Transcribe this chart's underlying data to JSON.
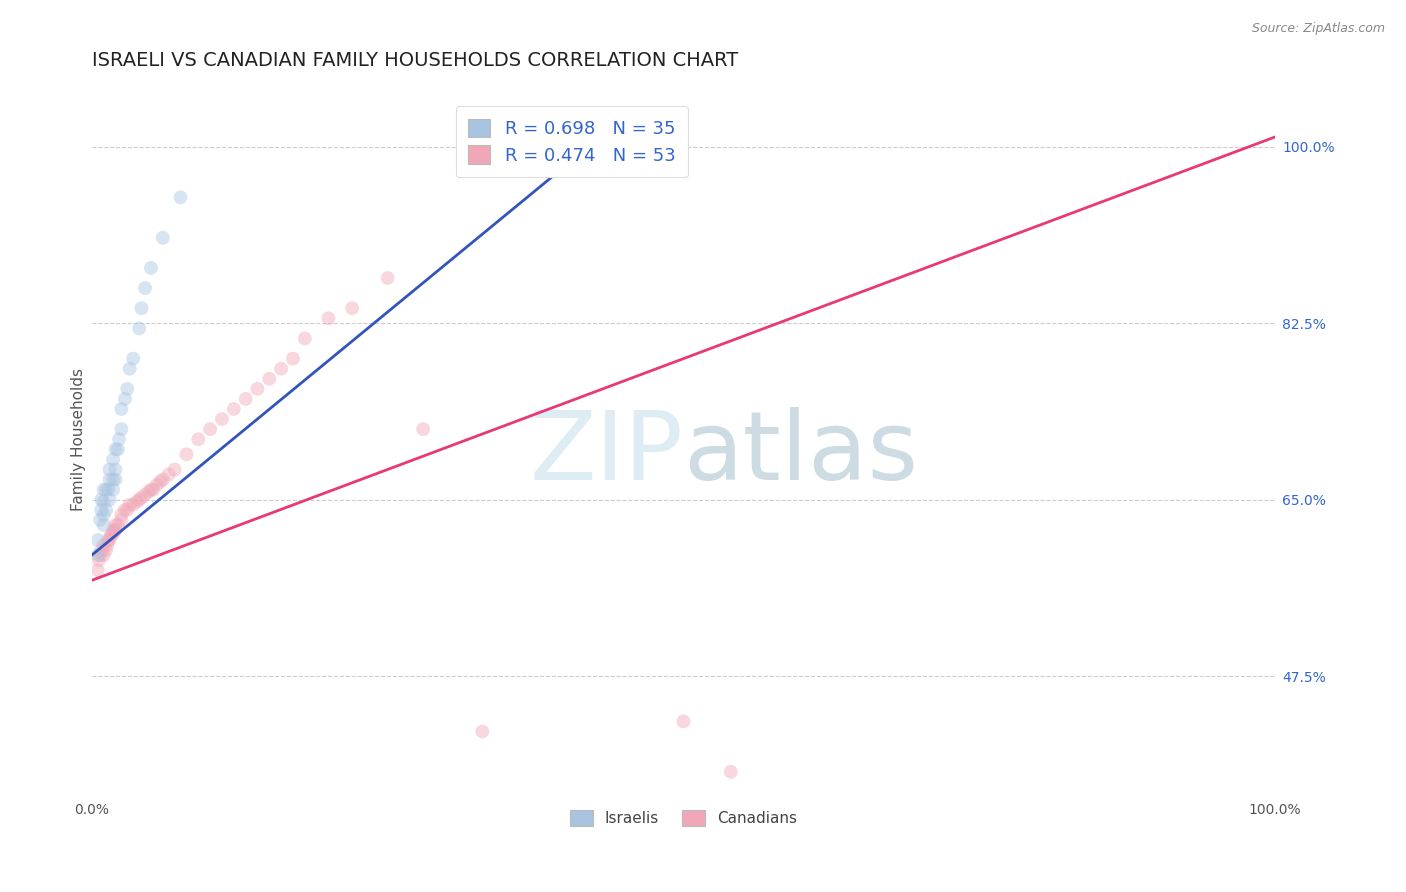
{
  "title": "ISRAELI VS CANADIAN FAMILY HOUSEHOLDS CORRELATION CHART",
  "source": "Source: ZipAtlas.com",
  "ylabel": "Family Households",
  "ytick_labels": [
    "47.5%",
    "65.0%",
    "82.5%",
    "100.0%"
  ],
  "ytick_values": [
    0.475,
    0.65,
    0.825,
    1.0
  ],
  "xlim": [
    0.0,
    1.0
  ],
  "ylim": [
    0.36,
    1.06
  ],
  "legend_blue": "R = 0.698   N = 35",
  "legend_pink": "R = 0.474   N = 53",
  "blue_color": "#a8c4e0",
  "pink_color": "#f0a8b8",
  "blue_line_color": "#3355bb",
  "pink_line_color": "#e83878",
  "israelis_x": [
    0.005,
    0.005,
    0.007,
    0.008,
    0.008,
    0.01,
    0.01,
    0.01,
    0.01,
    0.012,
    0.012,
    0.014,
    0.015,
    0.015,
    0.015,
    0.018,
    0.018,
    0.018,
    0.02,
    0.02,
    0.02,
    0.022,
    0.023,
    0.025,
    0.025,
    0.028,
    0.03,
    0.032,
    0.035,
    0.04,
    0.042,
    0.045,
    0.05,
    0.06,
    0.075
  ],
  "israelis_y": [
    0.595,
    0.61,
    0.63,
    0.64,
    0.65,
    0.625,
    0.635,
    0.648,
    0.66,
    0.64,
    0.66,
    0.66,
    0.65,
    0.67,
    0.68,
    0.66,
    0.67,
    0.69,
    0.67,
    0.68,
    0.7,
    0.7,
    0.71,
    0.72,
    0.74,
    0.75,
    0.76,
    0.78,
    0.79,
    0.82,
    0.84,
    0.86,
    0.88,
    0.91,
    0.95
  ],
  "canadians_x": [
    0.005,
    0.006,
    0.007,
    0.008,
    0.01,
    0.01,
    0.012,
    0.013,
    0.014,
    0.015,
    0.016,
    0.017,
    0.018,
    0.019,
    0.02,
    0.02,
    0.022,
    0.025,
    0.025,
    0.028,
    0.03,
    0.032,
    0.035,
    0.038,
    0.04,
    0.042,
    0.045,
    0.048,
    0.05,
    0.052,
    0.055,
    0.058,
    0.06,
    0.065,
    0.07,
    0.08,
    0.09,
    0.1,
    0.11,
    0.12,
    0.13,
    0.14,
    0.15,
    0.16,
    0.17,
    0.18,
    0.2,
    0.22,
    0.25,
    0.28,
    0.33,
    0.5,
    0.54
  ],
  "canadians_y": [
    0.58,
    0.59,
    0.595,
    0.6,
    0.595,
    0.605,
    0.6,
    0.605,
    0.61,
    0.61,
    0.615,
    0.615,
    0.62,
    0.618,
    0.62,
    0.625,
    0.625,
    0.63,
    0.635,
    0.64,
    0.64,
    0.645,
    0.645,
    0.648,
    0.65,
    0.652,
    0.655,
    0.658,
    0.66,
    0.66,
    0.665,
    0.668,
    0.67,
    0.675,
    0.68,
    0.695,
    0.71,
    0.72,
    0.73,
    0.74,
    0.75,
    0.76,
    0.77,
    0.78,
    0.79,
    0.81,
    0.83,
    0.84,
    0.87,
    0.72,
    0.42,
    0.43,
    0.38
  ],
  "blue_line_x": [
    0.0,
    0.43
  ],
  "blue_line_y": [
    0.595,
    1.01
  ],
  "pink_line_x": [
    0.0,
    1.0
  ],
  "pink_line_y": [
    0.57,
    1.01
  ],
  "background_color": "#ffffff",
  "marker_size": 100,
  "marker_alpha": 0.45,
  "grid_color": "#cccccc",
  "watermark_text": "ZIPatlas",
  "watermark_color": "#d8e8f0",
  "watermark_size": 72,
  "zip_color": "#c8dce8",
  "atlas_color": "#b8c8d8"
}
